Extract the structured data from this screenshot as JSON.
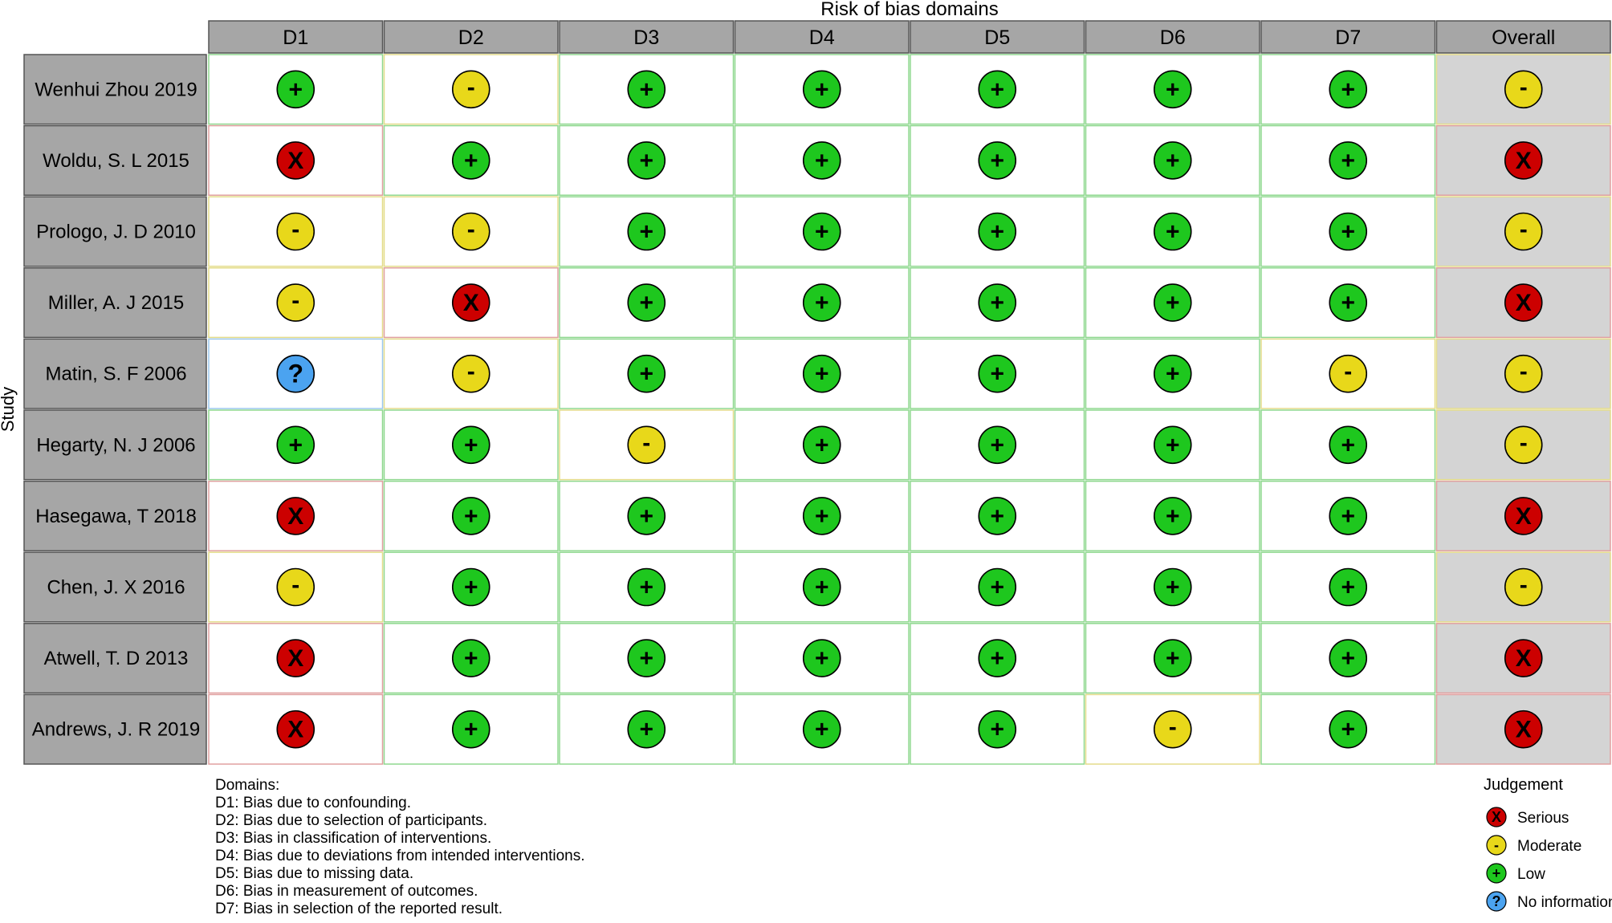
{
  "chart_data": {
    "type": "table",
    "title": "Risk of bias domains",
    "ylabel": "Study",
    "columns": [
      "D1",
      "D2",
      "D3",
      "D4",
      "D5",
      "D6",
      "D7",
      "Overall"
    ],
    "rows": [
      {
        "study": "Wenhui Zhou 2019",
        "judgements": [
          "Low",
          "Moderate",
          "Low",
          "Low",
          "Low",
          "Low",
          "Low",
          "Moderate"
        ]
      },
      {
        "study": "Woldu, S. L 2015",
        "judgements": [
          "Serious",
          "Low",
          "Low",
          "Low",
          "Low",
          "Low",
          "Low",
          "Serious"
        ]
      },
      {
        "study": "Prologo, J. D 2010",
        "judgements": [
          "Moderate",
          "Moderate",
          "Low",
          "Low",
          "Low",
          "Low",
          "Low",
          "Moderate"
        ]
      },
      {
        "study": "Miller, A. J 2015",
        "judgements": [
          "Moderate",
          "Serious",
          "Low",
          "Low",
          "Low",
          "Low",
          "Low",
          "Serious"
        ]
      },
      {
        "study": "Matin, S. F 2006",
        "judgements": [
          "No information",
          "Moderate",
          "Low",
          "Low",
          "Low",
          "Low",
          "Moderate",
          "Moderate"
        ]
      },
      {
        "study": "Hegarty, N. J 2006",
        "judgements": [
          "Low",
          "Low",
          "Moderate",
          "Low",
          "Low",
          "Low",
          "Low",
          "Moderate"
        ]
      },
      {
        "study": "Hasegawa, T 2018",
        "judgements": [
          "Serious",
          "Low",
          "Low",
          "Low",
          "Low",
          "Low",
          "Low",
          "Serious"
        ]
      },
      {
        "study": "Chen, J. X 2016",
        "judgements": [
          "Moderate",
          "Low",
          "Low",
          "Low",
          "Low",
          "Low",
          "Low",
          "Moderate"
        ]
      },
      {
        "study": "Atwell, T. D 2013",
        "judgements": [
          "Serious",
          "Low",
          "Low",
          "Low",
          "Low",
          "Low",
          "Low",
          "Serious"
        ]
      },
      {
        "study": "Andrews, J. R 2019",
        "judgements": [
          "Serious",
          "Low",
          "Low",
          "Low",
          "Low",
          "Moderate",
          "Low",
          "Serious"
        ]
      }
    ],
    "domains_heading": "Domains:",
    "domains": [
      "D1: Bias due to confounding.",
      "D2: Bias due to selection of participants.",
      "D3: Bias in classification of interventions.",
      "D4: Bias due to deviations from intended interventions.",
      "D5: Bias due to missing data.",
      "D6: Bias in measurement of outcomes.",
      "D7: Bias in selection of the reported result."
    ],
    "legend_title": "Judgement",
    "legend": [
      {
        "label": "Serious",
        "symbol": "X",
        "color": "#cc0000"
      },
      {
        "label": "Moderate",
        "symbol": "-",
        "color": "#e8d81a"
      },
      {
        "label": "Low",
        "symbol": "+",
        "color": "#1ec71e"
      },
      {
        "label": "No information",
        "symbol": "?",
        "color": "#4ba3f0"
      }
    ],
    "colors": {
      "header_fill": "#a6a6a6",
      "row_label_fill": "#a6a6a6",
      "overall_fill": "#d4d4d4",
      "cell_fill": "#ffffff"
    }
  }
}
